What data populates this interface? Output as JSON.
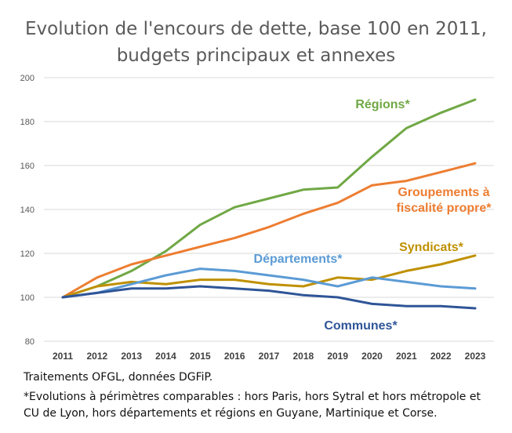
{
  "chart_data": {
    "type": "line",
    "title_line1": "Evolution de l'encours de dette, base 100 en 2011,",
    "title_line2": "budgets principaux et annexes",
    "xlabel": "",
    "ylabel": "",
    "x": [
      "2011",
      "2012",
      "2013",
      "2014",
      "2015",
      "2016",
      "2017",
      "2018",
      "2019",
      "2020",
      "2021",
      "2022",
      "2023"
    ],
    "ylim": [
      80,
      200
    ],
    "yticks": [
      "80",
      "100",
      "120",
      "140",
      "160",
      "180",
      "200"
    ],
    "grid": true,
    "series": [
      {
        "name": "Régions*",
        "label_lines": [
          "Régions*"
        ],
        "color": "#70a845",
        "values": [
          100,
          105,
          112,
          121,
          133,
          141,
          145,
          149,
          150,
          164,
          177,
          184,
          190
        ]
      },
      {
        "name": "Groupements à fiscalité propre*",
        "label_lines": [
          "Groupements à",
          "fiscalité propre*"
        ],
        "color": "#ed7d31",
        "values": [
          100,
          109,
          115,
          119,
          123,
          127,
          132,
          138,
          143,
          151,
          153,
          157,
          161
        ]
      },
      {
        "name": "Syndicats*",
        "label_lines": [
          "Syndicats*"
        ],
        "color": "#bf9000",
        "values": [
          100,
          105,
          107,
          106,
          108,
          108,
          106,
          105,
          109,
          108,
          112,
          115,
          119
        ]
      },
      {
        "name": "Départements*",
        "label_lines": [
          "Départements*"
        ],
        "color": "#5b9bd5",
        "values": [
          100,
          102,
          106,
          110,
          113,
          112,
          110,
          108,
          105,
          109,
          107,
          105,
          104
        ]
      },
      {
        "name": "Communes*",
        "label_lines": [
          "Communes*"
        ],
        "color": "#2f5597",
        "values": [
          100,
          102,
          104,
          104,
          105,
          104,
          103,
          101,
          100,
          97,
          96,
          96,
          95
        ]
      }
    ]
  },
  "footnotes": {
    "source": "Traitements OFGL, données DGFiP.",
    "note_line1": "*Evolutions à périmètres comparables : hors Paris, hors Sytral et hors métropole et",
    "note_line2": "CU de Lyon, hors départements et régions en Guyane,  Martinique et Corse."
  }
}
